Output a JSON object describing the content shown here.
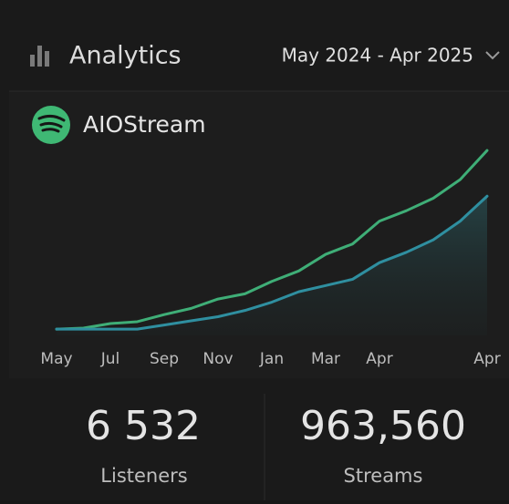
{
  "header": {
    "title": "Analytics",
    "date_range": "May 2024 - Apr 2025"
  },
  "brand": "AIOStream",
  "chart_data": {
    "type": "line",
    "categories": [
      "May",
      null,
      "Jul",
      null,
      "Sep",
      null,
      "Nov",
      null,
      "Jan",
      null,
      "Mar",
      null,
      "Apr",
      null,
      null,
      null,
      "Apr"
    ],
    "series": [
      {
        "color": "#3fae77",
        "values": [
          3,
          3.5,
          5.7,
          6.6,
          10,
          13,
          17.5,
          20,
          26,
          31,
          39,
          44,
          55,
          60,
          66,
          75,
          89
        ]
      },
      {
        "color": "#2f8fa0",
        "values": [
          3,
          3,
          3,
          3,
          5,
          7,
          9,
          12,
          16,
          21,
          24,
          27,
          35,
          40,
          46,
          55,
          67
        ]
      }
    ],
    "ylim": [
      0,
      100
    ]
  },
  "stats": [
    {
      "value": "6 532",
      "label": "Listeners"
    },
    {
      "value": "963,560",
      "label": "Streams"
    }
  ]
}
